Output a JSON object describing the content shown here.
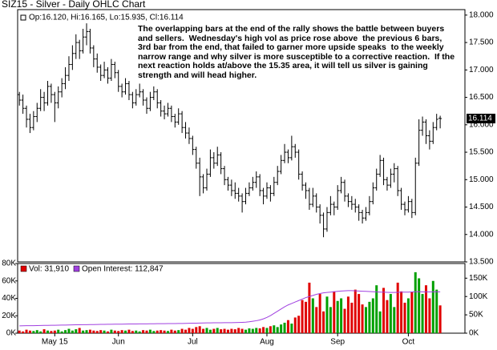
{
  "chart_data": [
    {
      "type": "ohlc",
      "title": "SIZ15 - Silver - Daily OHLC Chart",
      "legend": "Op:16.120, Hi:16.165, Lo:15.935, Cl:16.114",
      "last_label": "16.114",
      "annotation_lines": [
        "The overlapping bars at the end of the rally shows the battle between buyers",
        "and sellers.  Wednesday's high vol as price rose above  the previous 6 bars,",
        "3rd bar from the end, that failed to garner more upside speaks  to the weekly",
        "narrow range and why silver is more susceptible to a corrective reaction.  If the",
        "next reaction holds at/above the 15.35 area, it will tell us silver is gaining",
        "strength and will head higher."
      ],
      "color": "#000000",
      "xlim": [
        -0.5,
        126
      ],
      "ylim": [
        13.5,
        18.1
      ],
      "yticks": [
        {
          "value": 13.5,
          "label": "13.500"
        },
        {
          "value": 14,
          "label": "14.000"
        },
        {
          "value": 14.5,
          "label": "14.500"
        },
        {
          "value": 15,
          "label": "15.000"
        },
        {
          "value": 15.5,
          "label": "15.500"
        },
        {
          "value": 16,
          "label": "16.000"
        },
        {
          "value": 16.5,
          "label": "16.500"
        },
        {
          "value": 17,
          "label": "17.000"
        },
        {
          "value": 17.5,
          "label": "17.500"
        },
        {
          "value": 18,
          "label": "18.000"
        }
      ],
      "ohlc": [
        [
          16.55,
          16.6,
          16.35,
          16.45
        ],
        [
          16.45,
          16.55,
          16.2,
          16.3
        ],
        [
          16.3,
          16.35,
          15.95,
          16.1
        ],
        [
          16.1,
          16.2,
          15.85,
          15.95
        ],
        [
          15.95,
          16.25,
          15.9,
          16.15
        ],
        [
          16.15,
          16.4,
          16.05,
          16.3
        ],
        [
          16.3,
          16.65,
          16.25,
          16.5
        ],
        [
          16.5,
          16.6,
          16.25,
          16.4
        ],
        [
          16.4,
          16.8,
          16.35,
          16.7
        ],
        [
          16.7,
          16.75,
          16.4,
          16.55
        ],
        [
          16.55,
          16.6,
          16.05,
          16.4
        ],
        [
          16.4,
          16.7,
          16.3,
          16.6
        ],
        [
          16.6,
          16.85,
          16.5,
          16.75
        ],
        [
          16.75,
          17.05,
          16.65,
          16.9
        ],
        [
          16.9,
          17.25,
          16.8,
          17.1
        ],
        [
          17.1,
          17.45,
          17.0,
          17.3
        ],
        [
          17.3,
          17.65,
          17.2,
          17.5
        ],
        [
          17.5,
          17.55,
          17.2,
          17.35
        ],
        [
          17.35,
          17.75,
          17.3,
          17.6
        ],
        [
          17.6,
          17.85,
          17.45,
          17.7
        ],
        [
          17.7,
          17.75,
          17.3,
          17.4
        ],
        [
          17.4,
          17.45,
          17.05,
          17.2
        ],
        [
          17.2,
          17.3,
          16.95,
          17.05
        ],
        [
          17.05,
          17.1,
          16.8,
          16.9
        ],
        [
          16.9,
          17.15,
          16.85,
          17.0
        ],
        [
          17.0,
          17.05,
          16.75,
          16.85
        ],
        [
          16.85,
          17.2,
          16.8,
          17.1
        ],
        [
          17.1,
          17.15,
          16.85,
          16.95
        ],
        [
          16.95,
          17.0,
          16.6,
          16.7
        ],
        [
          16.7,
          16.75,
          16.5,
          16.6
        ],
        [
          16.6,
          16.85,
          16.55,
          16.75
        ],
        [
          16.75,
          16.8,
          16.45,
          16.55
        ],
        [
          16.55,
          16.6,
          16.3,
          16.4
        ],
        [
          16.4,
          16.65,
          16.35,
          16.55
        ],
        [
          16.55,
          16.75,
          16.5,
          16.6
        ],
        [
          16.6,
          16.65,
          16.35,
          16.45
        ],
        [
          16.45,
          16.5,
          16.2,
          16.3
        ],
        [
          16.3,
          16.6,
          16.25,
          16.5
        ],
        [
          16.5,
          16.7,
          16.45,
          16.6
        ],
        [
          16.6,
          16.65,
          16.3,
          16.4
        ],
        [
          16.4,
          16.45,
          16.15,
          16.25
        ],
        [
          16.25,
          16.35,
          16.1,
          16.2
        ],
        [
          16.2,
          16.4,
          16.15,
          16.3
        ],
        [
          16.3,
          16.35,
          16.05,
          16.15
        ],
        [
          16.15,
          16.2,
          15.95,
          16.05
        ],
        [
          16.05,
          16.3,
          16.0,
          16.2
        ],
        [
          16.2,
          16.25,
          15.85,
          15.95
        ],
        [
          15.95,
          16.05,
          15.75,
          15.85
        ],
        [
          15.85,
          15.95,
          15.65,
          15.75
        ],
        [
          15.75,
          15.8,
          15.45,
          15.55
        ],
        [
          15.55,
          15.6,
          15.2,
          15.3
        ],
        [
          15.3,
          15.4,
          14.7,
          15.05
        ],
        [
          15.05,
          15.1,
          14.75,
          14.85
        ],
        [
          14.85,
          15.2,
          14.8,
          15.1
        ],
        [
          15.1,
          15.55,
          15.05,
          15.4
        ],
        [
          15.4,
          15.5,
          15.2,
          15.3
        ],
        [
          15.3,
          15.6,
          15.25,
          15.45
        ],
        [
          15.45,
          15.5,
          15.1,
          15.2
        ],
        [
          15.2,
          15.25,
          14.9,
          15.0
        ],
        [
          15.0,
          15.05,
          14.8,
          14.9
        ],
        [
          14.9,
          15.0,
          14.7,
          14.8
        ],
        [
          14.8,
          14.95,
          14.65,
          14.75
        ],
        [
          14.75,
          14.85,
          14.6,
          14.7
        ],
        [
          14.7,
          14.75,
          14.4,
          14.6
        ],
        [
          14.6,
          14.85,
          14.55,
          14.75
        ],
        [
          14.75,
          14.95,
          14.7,
          14.85
        ],
        [
          14.85,
          15.05,
          14.8,
          14.95
        ],
        [
          14.95,
          15.15,
          14.85,
          15.05
        ],
        [
          15.05,
          15.1,
          14.7,
          14.8
        ],
        [
          14.8,
          14.85,
          14.55,
          14.7
        ],
        [
          14.7,
          14.95,
          14.65,
          14.85
        ],
        [
          14.85,
          14.9,
          14.6,
          14.75
        ],
        [
          14.75,
          15.05,
          14.7,
          14.95
        ],
        [
          14.95,
          15.25,
          14.9,
          15.15
        ],
        [
          15.15,
          15.45,
          15.1,
          15.35
        ],
        [
          15.35,
          15.65,
          15.3,
          15.5
        ],
        [
          15.5,
          15.55,
          15.3,
          15.4
        ],
        [
          15.4,
          15.8,
          15.35,
          15.6
        ],
        [
          15.6,
          15.65,
          15.4,
          15.5
        ],
        [
          15.5,
          15.55,
          15.0,
          15.1
        ],
        [
          15.1,
          15.15,
          14.8,
          14.9
        ],
        [
          14.9,
          14.95,
          14.65,
          14.8
        ],
        [
          14.8,
          14.85,
          14.45,
          14.55
        ],
        [
          14.55,
          14.85,
          14.5,
          14.7
        ],
        [
          14.7,
          14.75,
          14.4,
          14.5
        ],
        [
          14.5,
          14.55,
          14.2,
          14.35
        ],
        [
          14.35,
          14.4,
          13.95,
          14.1
        ],
        [
          14.1,
          14.5,
          14.05,
          14.4
        ],
        [
          14.4,
          14.7,
          14.35,
          14.55
        ],
        [
          14.55,
          14.6,
          14.35,
          14.5
        ],
        [
          14.5,
          14.9,
          14.45,
          14.8
        ],
        [
          14.8,
          15.05,
          14.75,
          14.95
        ],
        [
          14.95,
          15.0,
          14.6,
          14.7
        ],
        [
          14.7,
          14.75,
          14.5,
          14.6
        ],
        [
          14.6,
          14.7,
          14.45,
          14.55
        ],
        [
          14.55,
          14.65,
          14.4,
          14.5
        ],
        [
          14.5,
          14.55,
          14.25,
          14.4
        ],
        [
          14.4,
          14.45,
          14.2,
          14.3
        ],
        [
          14.3,
          14.5,
          14.25,
          14.4
        ],
        [
          14.4,
          14.7,
          14.35,
          14.6
        ],
        [
          14.6,
          14.95,
          14.55,
          14.85
        ],
        [
          14.85,
          15.2,
          14.8,
          15.1
        ],
        [
          15.1,
          15.45,
          15.05,
          15.35
        ],
        [
          15.35,
          15.4,
          14.9,
          15.0
        ],
        [
          15.0,
          15.05,
          14.8,
          14.9
        ],
        [
          14.9,
          15.2,
          14.85,
          15.1
        ],
        [
          15.1,
          15.3,
          14.95,
          15.2
        ],
        [
          15.2,
          15.25,
          14.7,
          14.8
        ],
        [
          14.8,
          14.85,
          14.45,
          14.55
        ],
        [
          14.55,
          14.6,
          14.35,
          14.45
        ],
        [
          14.45,
          14.7,
          14.4,
          14.6
        ],
        [
          14.6,
          14.65,
          14.3,
          14.4
        ],
        [
          14.4,
          15.4,
          14.35,
          15.3
        ],
        [
          15.3,
          16.1,
          15.25,
          15.9
        ],
        [
          15.9,
          16.15,
          15.8,
          16.05
        ],
        [
          16.05,
          16.1,
          15.65,
          15.8
        ],
        [
          15.8,
          15.9,
          15.55,
          15.7
        ],
        [
          15.7,
          16.05,
          15.65,
          15.95
        ],
        [
          15.95,
          16.2,
          15.9,
          16.1
        ],
        [
          16.12,
          16.165,
          15.935,
          16.114
        ]
      ]
    },
    {
      "type": "volume",
      "xlim": [
        -0.5,
        126
      ],
      "xticks": [
        {
          "value": 10,
          "label": "May 15"
        },
        {
          "value": 28,
          "label": "Jun"
        },
        {
          "value": 49,
          "label": "Jul"
        },
        {
          "value": 70,
          "label": "Aug"
        },
        {
          "value": 90,
          "label": "Sep"
        },
        {
          "value": 110,
          "label": "Oct"
        }
      ],
      "ylim": [
        0,
        80000
      ],
      "yticks": [
        {
          "value": 0,
          "label": "0K"
        },
        {
          "value": 20000,
          "label": "20K"
        },
        {
          "value": 40000,
          "label": "40K"
        },
        {
          "value": 60000,
          "label": "60K"
        },
        {
          "value": 80000,
          "label": "80K"
        }
      ],
      "y2lim": [
        0,
        190000
      ],
      "y2ticks": [
        {
          "value": 0,
          "label": "0K"
        },
        {
          "value": 50000,
          "label": "50K"
        },
        {
          "value": 100000,
          "label": "100K"
        },
        {
          "value": 150000,
          "label": "150K"
        }
      ],
      "up_color": "#00a000",
      "series": [
        {
          "name": "Vol: 31,910",
          "color": "#e00000",
          "values": [
            3000,
            2000,
            4000,
            3000,
            2500,
            3500,
            2000,
            4500,
            3000,
            2500,
            3000,
            4000,
            2000,
            3500,
            5000,
            3000,
            4500,
            6000,
            3000,
            3500,
            4000,
            3000,
            2500,
            3500,
            3000,
            2000,
            4000,
            3000,
            2500,
            3500,
            3000,
            4000,
            2500,
            3000,
            2000,
            3500,
            3000,
            4000,
            2500,
            3000,
            3500,
            3000,
            2500,
            4000,
            3000,
            3500,
            5000,
            4000,
            6000,
            5000,
            7000,
            8000,
            5000,
            6000,
            4000,
            5000,
            6000,
            4500,
            5000,
            4000,
            5000,
            4500,
            6000,
            5000,
            4000,
            5500,
            5000,
            6000,
            5500,
            7000,
            6000,
            8000,
            9000,
            7000,
            10000,
            12000,
            15000,
            11000,
            18000,
            20000,
            38000,
            36000,
            58000,
            40000,
            30000,
            45000,
            25000,
            42000,
            30000,
            48000,
            37000,
            40000,
            28000,
            42000,
            35000,
            50000,
            45000,
            33000,
            30000,
            36000,
            40000,
            55000,
            25000,
            52000,
            38000,
            45000,
            30000,
            58000,
            48000,
            35000,
            40000,
            47000,
            70000,
            63000,
            45000,
            55000,
            40000,
            60000,
            50000,
            31910
          ]
        },
        {
          "name": "Open Interest: 112,847",
          "color": "#a040e0",
          "axis": "y2",
          "values": [
            20000,
            20200,
            20400,
            20500,
            20600,
            20800,
            21000,
            21200,
            21300,
            21500,
            21700,
            21900,
            22000,
            22200,
            22400,
            22600,
            22800,
            23000,
            23100,
            23300,
            23500,
            23600,
            23800,
            24000,
            24100,
            24200,
            24300,
            24500,
            24600,
            24700,
            24800,
            25000,
            25100,
            25200,
            25300,
            25400,
            25500,
            25600,
            25700,
            25800,
            25900,
            26000,
            26100,
            26200,
            26300,
            26400,
            26600,
            26800,
            27000,
            27200,
            27400,
            27600,
            27800,
            28000,
            28200,
            28300,
            28400,
            28500,
            28600,
            28700,
            28800,
            29000,
            29200,
            29500,
            30000,
            31000,
            32500,
            34000,
            36000,
            39000,
            43000,
            48000,
            54000,
            60000,
            66000,
            72000,
            77000,
            81000,
            85000,
            89000,
            93000,
            97000,
            100000,
            103000,
            106000,
            108000,
            110000,
            111000,
            112000,
            113000,
            114000,
            115000,
            115500,
            116000,
            116000,
            115500,
            115000,
            114500,
            114000,
            113500,
            113000,
            112500,
            112000,
            112000,
            111500,
            111000,
            111000,
            111500,
            112000,
            112000,
            112000,
            112500,
            113000,
            113000,
            112800,
            112500,
            112600,
            112700,
            112800,
            112847
          ]
        }
      ]
    }
  ]
}
